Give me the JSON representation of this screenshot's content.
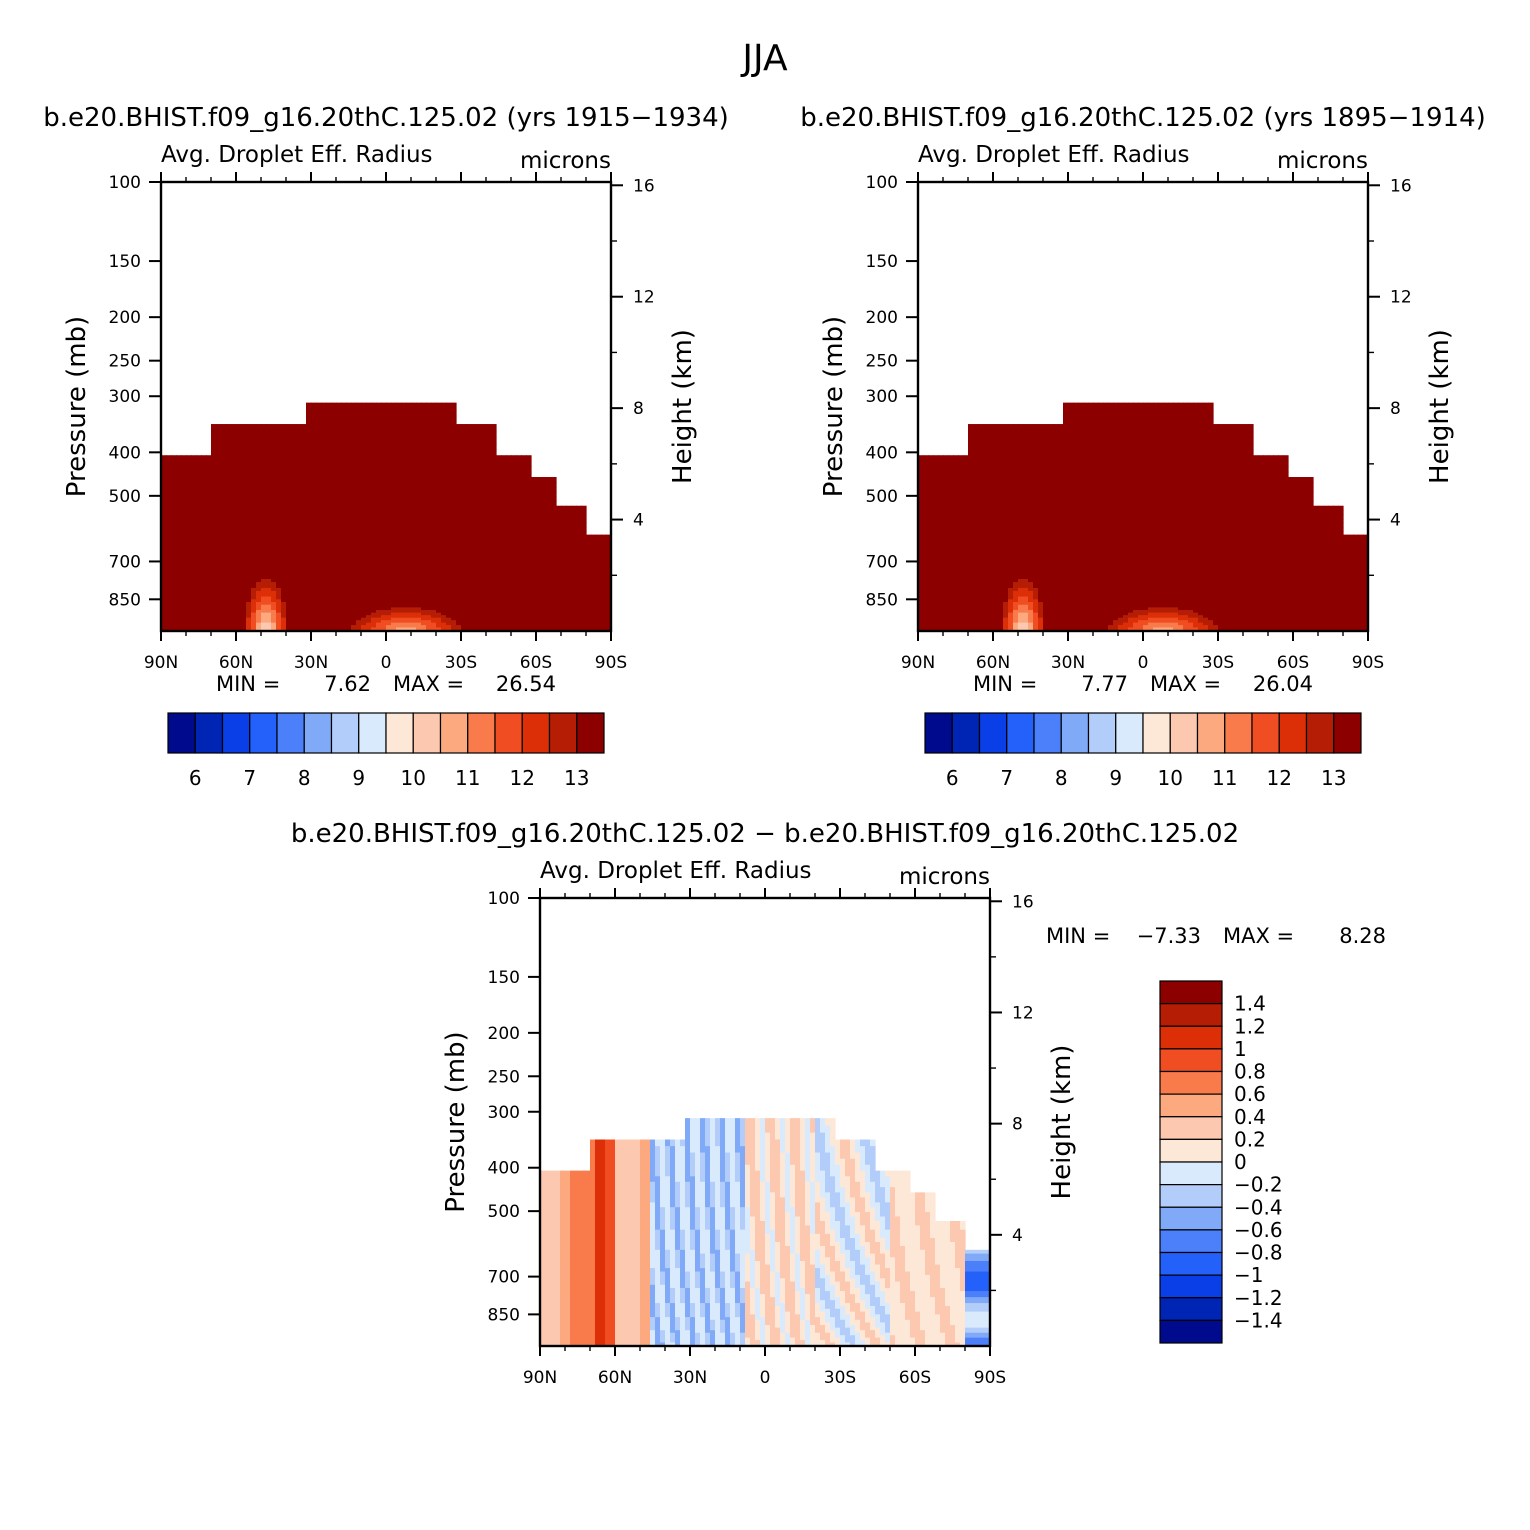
{
  "figure": {
    "title": "JJA"
  },
  "chart_data": [
    {
      "type": "heatmap",
      "id": "left",
      "case_title": "b.e20.BHIST.f09_g16.20thC.125.02 (yrs 1915-1934)",
      "title": "Avg. Droplet Eff. Radius",
      "units": "microns",
      "ylabel": "Pressure (mb)",
      "y2label": "Height (km)",
      "x_ticks": [
        "90N",
        "60N",
        "30N",
        "0",
        "30S",
        "60S",
        "90S"
      ],
      "y_ticks": [
        "100",
        "150",
        "200",
        "250",
        "300",
        "400",
        "500",
        "700",
        "850"
      ],
      "y2_ticks": [
        "16",
        "12",
        "8",
        "4"
      ],
      "min_label": "MIN =",
      "min_value": "7.62",
      "max_label": "MAX =",
      "max_value": "26.54",
      "colorbar_labels": [
        "6",
        "7",
        "8",
        "9",
        "10",
        "11",
        "12",
        "13"
      ],
      "colorbar_colors": [
        "#000a8c",
        "#0025b4",
        "#0a3ee6",
        "#2461fa",
        "#4b80fa",
        "#80aaf8",
        "#b3cdfa",
        "#d9eafc",
        "#fde8d8",
        "#fcc8b0",
        "#fca980",
        "#f97a4a",
        "#f04e22",
        "#dc2f08",
        "#b51d05",
        "#8c0000"
      ]
    },
    {
      "type": "heatmap",
      "id": "right",
      "case_title": "b.e20.BHIST.f09_g16.20thC.125.02 (yrs 1895-1914)",
      "title": "Avg. Droplet Eff. Radius",
      "units": "microns",
      "ylabel": "Pressure (mb)",
      "y2label": "Height (km)",
      "x_ticks": [
        "90N",
        "60N",
        "30N",
        "0",
        "30S",
        "60S",
        "90S"
      ],
      "y_ticks": [
        "100",
        "150",
        "200",
        "250",
        "300",
        "400",
        "500",
        "700",
        "850"
      ],
      "y2_ticks": [
        "16",
        "12",
        "8",
        "4"
      ],
      "min_label": "MIN =",
      "min_value": "7.77",
      "max_label": "MAX =",
      "max_value": "26.04",
      "colorbar_labels": [
        "6",
        "7",
        "8",
        "9",
        "10",
        "11",
        "12",
        "13"
      ],
      "colorbar_colors": [
        "#000a8c",
        "#0025b4",
        "#0a3ee6",
        "#2461fa",
        "#4b80fa",
        "#80aaf8",
        "#b3cdfa",
        "#d9eafc",
        "#fde8d8",
        "#fcc8b0",
        "#fca980",
        "#f97a4a",
        "#f04e22",
        "#dc2f08",
        "#b51d05",
        "#8c0000"
      ]
    },
    {
      "type": "heatmap",
      "id": "diff",
      "case_title": "b.e20.BHIST.f09_g16.20thC.125.02 - b.e20.BHIST.f09_g16.20thC.125.02",
      "title": "Avg. Droplet Eff. Radius",
      "units": "microns",
      "ylabel": "Pressure (mb)",
      "y2label": "Height (km)",
      "x_ticks": [
        "90N",
        "60N",
        "30N",
        "0",
        "30S",
        "60S",
        "90S"
      ],
      "y_ticks": [
        "100",
        "150",
        "200",
        "250",
        "300",
        "400",
        "500",
        "700",
        "850"
      ],
      "y2_ticks": [
        "16",
        "12",
        "8",
        "4"
      ],
      "min_label": "MIN =",
      "min_value": "-7.33",
      "max_label": "MAX =",
      "max_value": "8.28",
      "colorbar_labels": [
        "1.4",
        "1.2",
        "1",
        "0.8",
        "0.6",
        "0.4",
        "0.2",
        "0",
        "-0.2",
        "-0.4",
        "-0.6",
        "-0.8",
        "-1",
        "-1.2",
        "-1.4"
      ],
      "colorbar_colors": [
        "#8c0000",
        "#b51d05",
        "#dc2f08",
        "#f04e22",
        "#f97a4a",
        "#fca980",
        "#fcc8b0",
        "#fde8d8",
        "#d9eafc",
        "#b3cdfa",
        "#80aaf8",
        "#4b80fa",
        "#2461fa",
        "#0a3ee6",
        "#0025b4",
        "#000a8c"
      ]
    }
  ]
}
